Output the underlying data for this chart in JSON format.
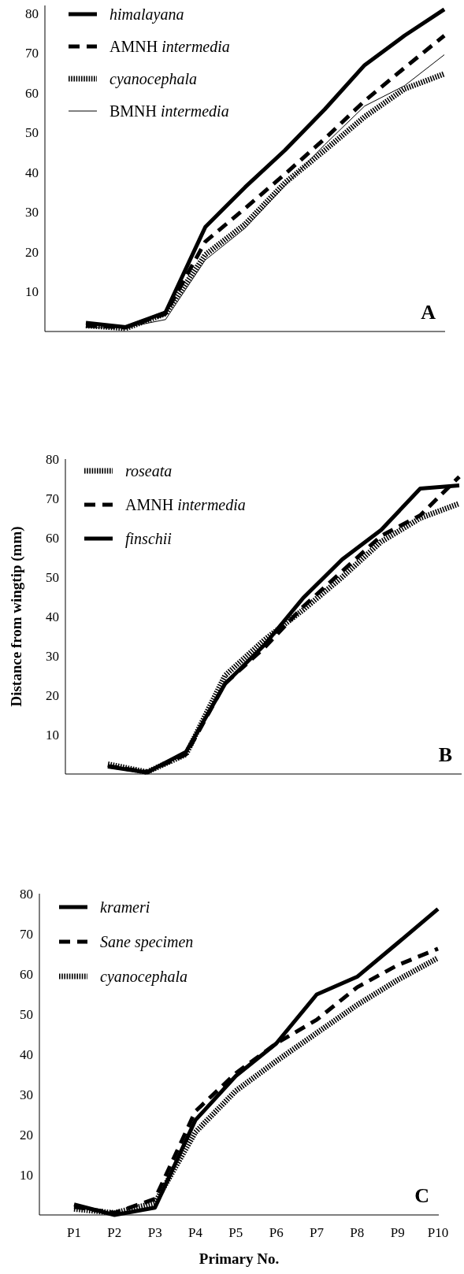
{
  "chart_data": [
    {
      "type": "line",
      "categories": [
        null,
        null,
        null,
        null,
        null,
        null,
        null,
        null,
        null,
        null
      ],
      "ylim": [
        0,
        82
      ],
      "yticks": [
        10,
        20,
        30,
        40,
        50,
        60,
        70,
        80
      ],
      "legend": "top left",
      "annotations": [
        "A"
      ],
      "series": [
        {
          "name": "himalayana",
          "color": "#000000",
          "line_style": "solid",
          "values": [
            2.2,
            1.1,
            4.8,
            26.3,
            36.3,
            45.6,
            55.9,
            67,
            74.4,
            81
          ]
        },
        {
          "name": "AMNH intermedia",
          "color": "#000000",
          "line_style": "dashed",
          "values": [
            1.5,
            1,
            4.5,
            22.6,
            31,
            39.6,
            48.5,
            58,
            66.3,
            74.4
          ]
        },
        {
          "name": "cyanocephala",
          "color": "#000000",
          "line_style": "dotted",
          "values": [
            1.5,
            0.8,
            4.5,
            19.3,
            27,
            37.4,
            45.6,
            54,
            61,
            64.8
          ]
        },
        {
          "name": "BMNH intermedia",
          "color": "#000000",
          "line_style": "solid",
          "values": [
            1,
            1,
            3,
            18,
            26,
            36.7,
            47,
            56.7,
            61.8,
            69.6
          ]
        }
      ]
    },
    {
      "type": "line",
      "categories": [
        null,
        null,
        null,
        null,
        null,
        null,
        null,
        null,
        null,
        null
      ],
      "ylim": [
        0,
        80
      ],
      "yticks": [
        10,
        20,
        30,
        40,
        50,
        60,
        70,
        80
      ],
      "ylabel": "Distance from wingtip (mm)",
      "legend": "top left",
      "annotations": [
        "B"
      ],
      "series": [
        {
          "name": "roseata",
          "color": "#000000",
          "line_style": "dotted",
          "values": [
            2.5,
            0.5,
            5,
            25,
            34,
            41.7,
            50,
            59,
            65,
            68.7
          ]
        },
        {
          "name": "AMNH intermedia",
          "color": "#000000",
          "line_style": "dashed",
          "values": [
            2,
            0.5,
            5,
            23,
            32,
            42.5,
            51.5,
            60.5,
            65.7,
            75.5
          ]
        },
        {
          "name": "finschii",
          "color": "#000000",
          "line_style": "solid",
          "values": [
            1.9,
            0.4,
            5.6,
            22.9,
            32.7,
            44.7,
            54.5,
            62,
            72.5,
            73.3
          ]
        }
      ]
    },
    {
      "type": "line",
      "categories": [
        "P1",
        "P2",
        "P3",
        "P4",
        "P5",
        "P6",
        "P7",
        "P8",
        "P9",
        "P10"
      ],
      "ylim": [
        0,
        80
      ],
      "yticks": [
        10,
        20,
        30,
        40,
        50,
        60,
        70,
        80
      ],
      "xlabel": "Primary No.",
      "legend": "top left",
      "annotations": [
        "C"
      ],
      "series": [
        {
          "name": "krameri",
          "color": "#000000",
          "line_style": "solid",
          "values": [
            2.6,
            0,
            1.8,
            23.6,
            34.6,
            42.7,
            54.9,
            59.3,
            67.7,
            76.2
          ]
        },
        {
          "name": "Sane specimen",
          "color": "#000000",
          "line_style": "dashed",
          "values": [
            2,
            0.5,
            4,
            25.8,
            35.3,
            42.7,
            48.6,
            56.7,
            62.2,
            66.3
          ]
        },
        {
          "name": "cyanocephala",
          "color": "#000000",
          "line_style": "dotted",
          "values": [
            1.5,
            0.5,
            3,
            20.6,
            30.9,
            38.3,
            45.3,
            52.3,
            58.5,
            64
          ]
        }
      ]
    }
  ]
}
